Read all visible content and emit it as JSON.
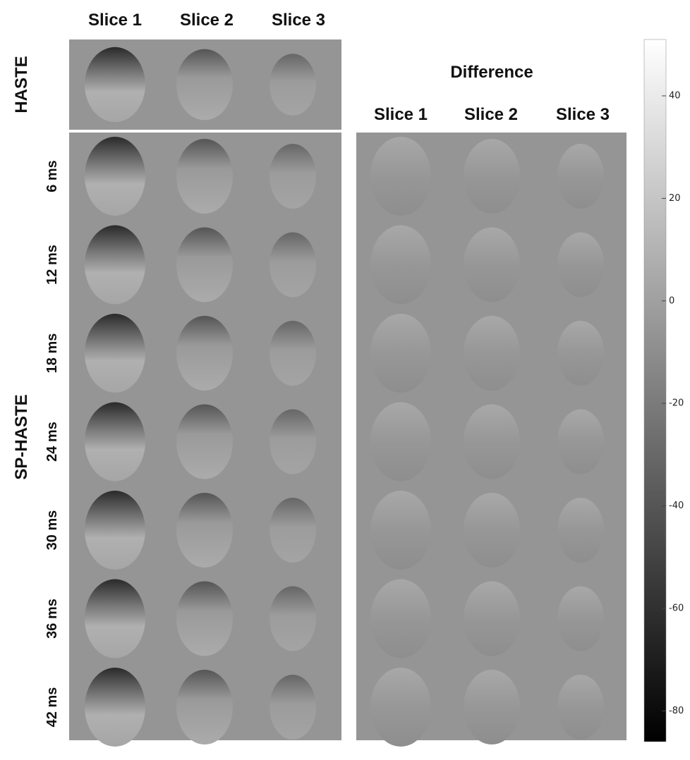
{
  "column_headers": [
    "Slice 1",
    "Slice 2",
    "Slice 3"
  ],
  "groups": [
    "HASTE",
    "SP-HASTE"
  ],
  "row_labels": [
    "6 ms",
    "12 ms",
    "18 ms",
    "24 ms",
    "30 ms",
    "36 ms",
    "42 ms"
  ],
  "difference": {
    "title": "Difference",
    "column_headers": [
      "Slice 1",
      "Slice 2",
      "Slice 3"
    ]
  },
  "colorbar": {
    "lim": [
      -86,
      51
    ],
    "ticks": [
      40,
      20,
      0,
      -20,
      -40,
      -60,
      -80
    ]
  }
}
